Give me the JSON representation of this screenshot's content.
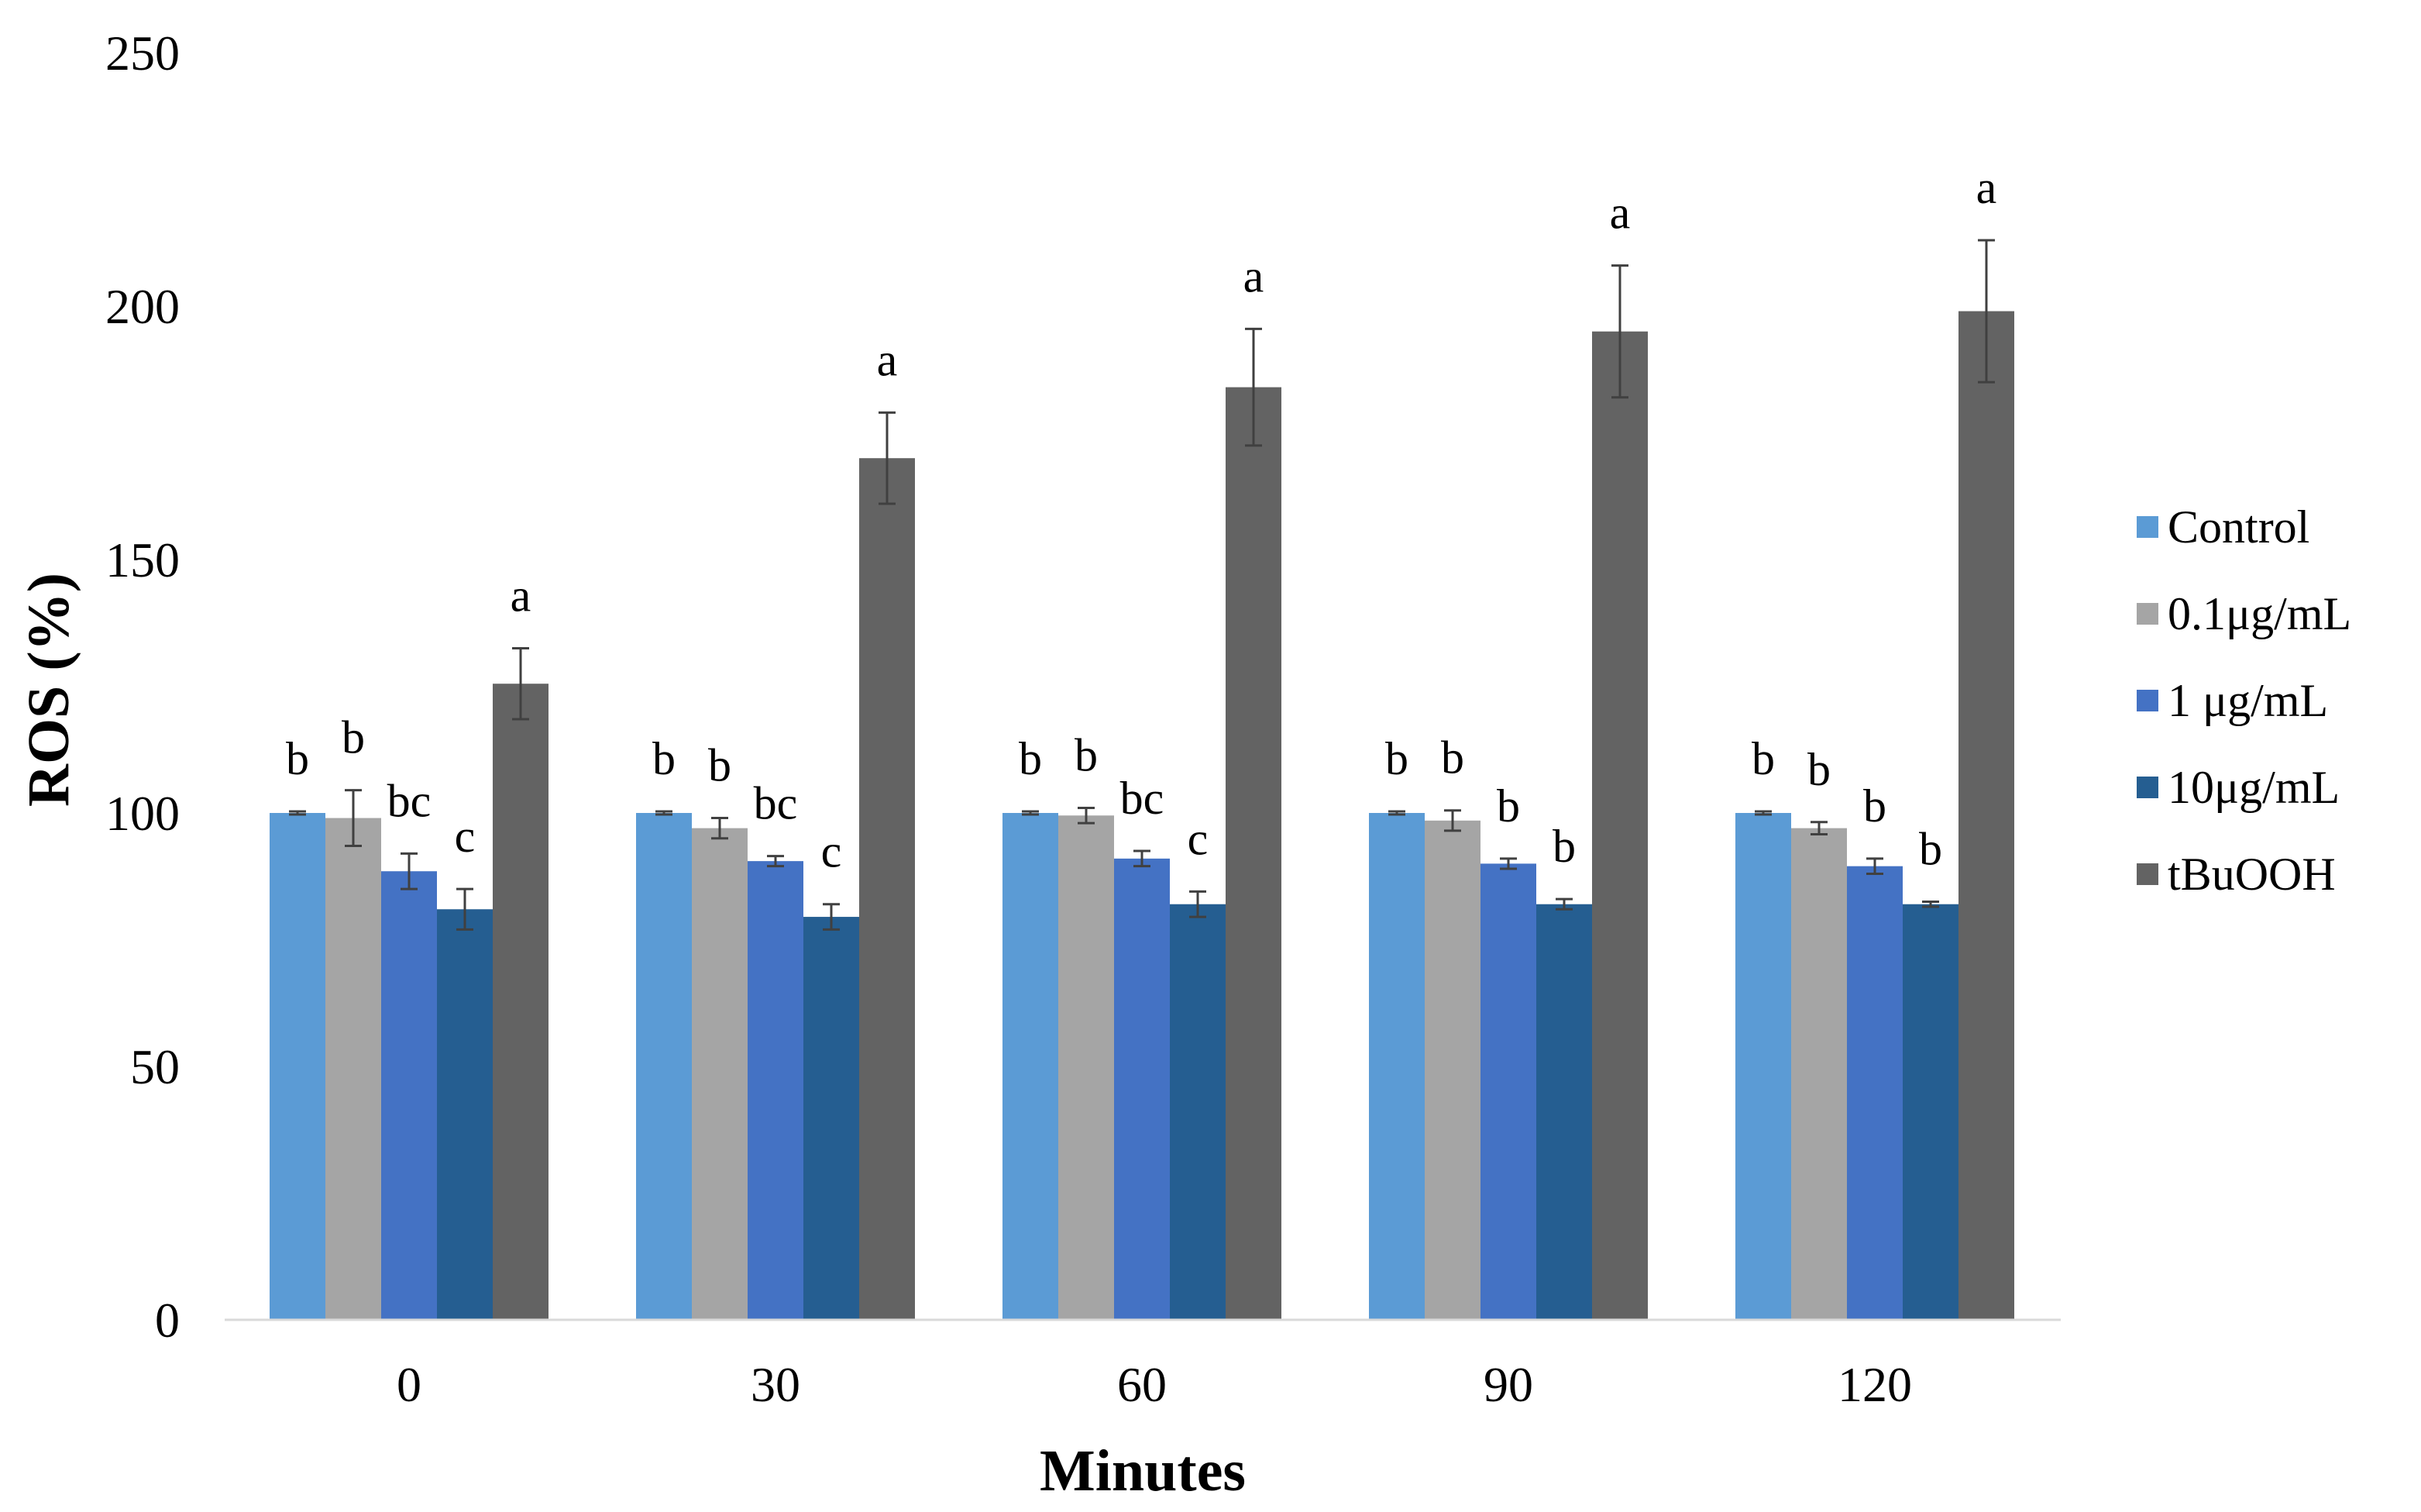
{
  "chart_data": {
    "type": "bar",
    "title": "",
    "xlabel": "Minutes",
    "ylabel": "ROS (%)",
    "ylim": [
      0,
      250
    ],
    "yticks": [
      0,
      50,
      100,
      150,
      200,
      250
    ],
    "categories": [
      "0",
      "30",
      "60",
      "90",
      "120"
    ],
    "series": [
      {
        "name": "Control",
        "color": "#5b9bd5",
        "values": [
          100,
          100,
          100,
          100,
          100
        ],
        "errors": [
          0.3,
          0.3,
          0.3,
          0.3,
          0.3
        ],
        "letters": [
          "b",
          "b",
          "b",
          "b",
          "b"
        ]
      },
      {
        "name": "0.1μg/mL",
        "color": "#a5a5a5",
        "values": [
          99,
          97,
          99.5,
          98.5,
          97
        ],
        "errors": [
          5.5,
          2,
          1.5,
          2,
          1.2
        ],
        "letters": [
          "b",
          "b",
          "b",
          "b",
          "b"
        ]
      },
      {
        "name": "1 μg/mL",
        "color": "#4472c4",
        "values": [
          88.5,
          90.5,
          91,
          90,
          89.5
        ],
        "errors": [
          3.5,
          1,
          1.5,
          1,
          1.5
        ],
        "letters": [
          "bc",
          "bc",
          "bc",
          "b",
          "b"
        ]
      },
      {
        "name": "10μg/mL",
        "color": "#255e91",
        "values": [
          81,
          79.5,
          82,
          82,
          82
        ],
        "errors": [
          4,
          2.5,
          2.5,
          1,
          0.5
        ],
        "letters": [
          "c",
          "c",
          "c",
          "b",
          "b"
        ]
      },
      {
        "name": "tBuOOH",
        "color": "#636363",
        "values": [
          125.5,
          170,
          184,
          195,
          199
        ],
        "errors": [
          7,
          9,
          11.5,
          13,
          14
        ],
        "letters": [
          "a",
          "a",
          "a",
          "a",
          "a"
        ]
      }
    ],
    "legend_position": "right",
    "grid": false
  }
}
